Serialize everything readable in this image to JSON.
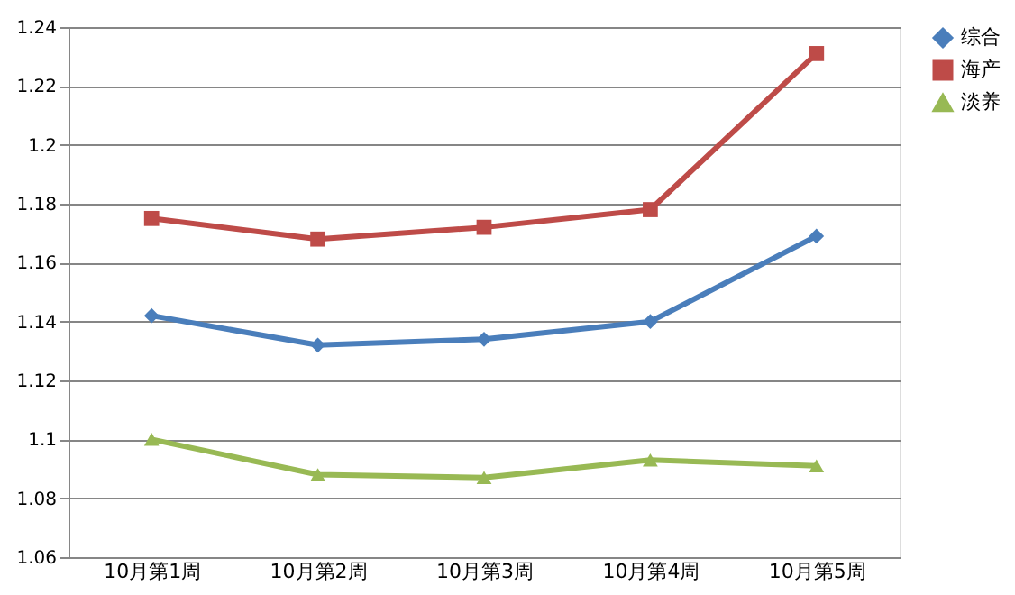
{
  "chart_data": {
    "type": "line",
    "categories": [
      "10月第1周",
      "10月第2周",
      "10月第3周",
      "10月第4周",
      "10月第5周"
    ],
    "series": [
      {
        "name": "综合",
        "color": "#4a7ebb",
        "marker": "diamond",
        "values": [
          1.142,
          1.132,
          1.134,
          1.14,
          1.169
        ]
      },
      {
        "name": "海产",
        "color": "#be4b48",
        "marker": "square",
        "values": [
          1.175,
          1.168,
          1.172,
          1.178,
          1.231
        ]
      },
      {
        "name": "淡养",
        "color": "#98b954",
        "marker": "triangle",
        "values": [
          1.1,
          1.088,
          1.087,
          1.093,
          1.091
        ]
      }
    ],
    "ylim": [
      1.06,
      1.24
    ],
    "yticks": [
      1.06,
      1.08,
      1.1,
      1.12,
      1.14,
      1.16,
      1.18,
      1.2,
      1.22,
      1.24
    ],
    "grid": "y",
    "legend": "right",
    "line_style": "solid"
  }
}
